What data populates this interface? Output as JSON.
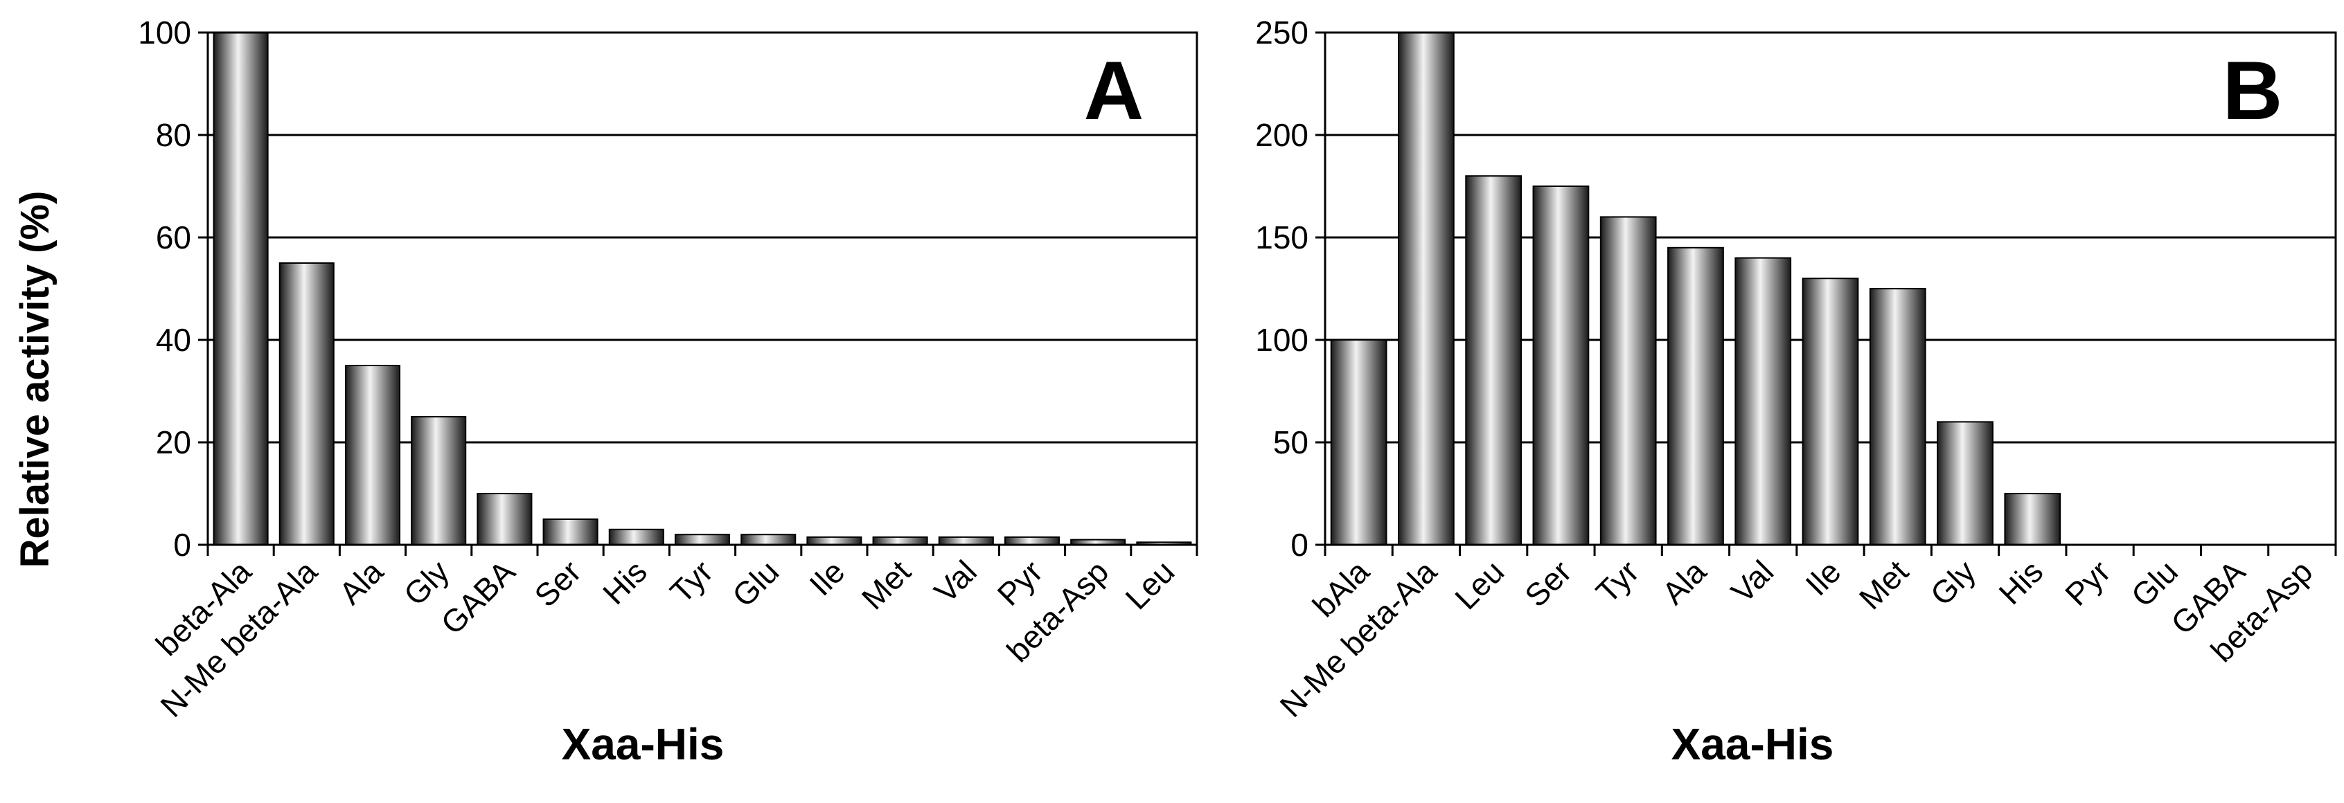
{
  "chart_data": [
    {
      "type": "bar",
      "panel_label": "A",
      "categories": [
        "beta-Ala",
        "N-Me beta-Ala",
        "Ala",
        "Gly",
        "GABA",
        "Ser",
        "His",
        "Tyr",
        "Glu",
        "Ile",
        "Met",
        "Val",
        "Pyr",
        "beta-Asp",
        "Leu"
      ],
      "values": [
        100,
        55,
        35,
        25,
        10,
        5,
        3,
        2,
        2,
        1.5,
        1.5,
        1.5,
        1.5,
        1,
        0.5
      ],
      "xlabel": "Xaa-His",
      "ylabel": "Relative activity (%)",
      "ylim": [
        0,
        100
      ],
      "yticks": [
        0,
        20,
        40,
        60,
        80,
        100
      ],
      "grid": true,
      "bar_color": "#555555"
    },
    {
      "type": "bar",
      "panel_label": "B",
      "categories": [
        "bAla",
        "N-Me beta-Ala",
        "Leu",
        "Ser",
        "Tyr",
        "Ala",
        "Val",
        "Ile",
        "Met",
        "Gly",
        "His",
        "Pyr",
        "Glu",
        "GABA",
        "beta-Asp"
      ],
      "values": [
        100,
        250,
        180,
        175,
        160,
        145,
        140,
        130,
        125,
        60,
        25,
        0,
        0,
        0,
        0
      ],
      "xlabel": "Xaa-His",
      "ylabel": "",
      "ylim": [
        0,
        250
      ],
      "yticks": [
        0,
        50,
        100,
        150,
        200,
        250
      ],
      "grid": true,
      "bar_color": "#555555"
    }
  ]
}
